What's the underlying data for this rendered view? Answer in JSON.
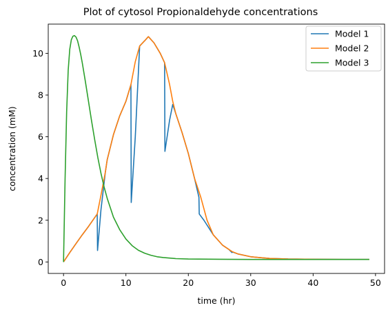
{
  "chart_data": {
    "type": "line",
    "title": "Plot of cytosol Propionaldehyde concentrations",
    "xlabel": "time (hr)",
    "ylabel": "concentration (mM)",
    "xlim": [
      -2.45,
      51.45
    ],
    "ylim": [
      -0.55,
      11.4
    ],
    "xticks": [
      0,
      10,
      20,
      30,
      40,
      50
    ],
    "yticks": [
      0,
      2,
      4,
      6,
      8,
      10
    ],
    "grid": false,
    "legend_position": "top-right",
    "series": [
      {
        "name": "Model 1",
        "color": "#1f77b4",
        "x": [
          0,
          1,
          2,
          3,
          4,
          5.4,
          5.45,
          6,
          6.7,
          7,
          8,
          9,
          10,
          10.8,
          10.85,
          11.5,
          12.2,
          13,
          13.6,
          14.5,
          15.5,
          16.2,
          16.25,
          17,
          17.5,
          18,
          19,
          20,
          21,
          21.7,
          21.75,
          22.5,
          24,
          25.5,
          26.5,
          27,
          27.05,
          28,
          30,
          33,
          36,
          40,
          45,
          49
        ],
        "y": [
          0,
          0.45,
          0.88,
          1.3,
          1.7,
          2.3,
          0.55,
          2.5,
          4.3,
          4.9,
          6.1,
          7.0,
          7.7,
          8.5,
          2.85,
          6.0,
          10.35,
          10.6,
          10.8,
          10.5,
          10.0,
          9.55,
          5.3,
          6.8,
          7.55,
          7.1,
          6.2,
          5.2,
          4.0,
          3.1,
          2.3,
          2.0,
          1.3,
          0.8,
          0.6,
          0.45,
          0.48,
          0.38,
          0.25,
          0.17,
          0.14,
          0.13,
          0.12,
          0.12
        ]
      },
      {
        "name": "Model 2",
        "color": "#ff7f0e",
        "x": [
          0,
          1,
          2,
          3,
          4,
          5.4,
          6,
          6.7,
          7,
          8,
          9,
          10,
          10.8,
          11.5,
          12.2,
          13,
          13.6,
          14.5,
          15.5,
          16.2,
          17,
          17.5,
          18,
          19,
          20,
          21,
          22,
          23,
          24,
          25.5,
          27,
          28,
          30,
          33,
          36,
          40,
          45,
          49
        ],
        "y": [
          0,
          0.45,
          0.88,
          1.3,
          1.7,
          2.3,
          3.2,
          4.3,
          4.9,
          6.1,
          7.0,
          7.7,
          8.5,
          9.6,
          10.35,
          10.6,
          10.8,
          10.5,
          10.0,
          9.55,
          8.5,
          7.7,
          7.1,
          6.2,
          5.2,
          4.0,
          3.1,
          2.0,
          1.3,
          0.8,
          0.5,
          0.38,
          0.25,
          0.17,
          0.14,
          0.13,
          0.12,
          0.12
        ]
      },
      {
        "name": "Model 3",
        "color": "#2ca02c",
        "x": [
          0,
          0.25,
          0.5,
          0.75,
          1,
          1.25,
          1.5,
          1.75,
          2,
          2.25,
          2.5,
          2.75,
          3,
          3.5,
          4,
          4.5,
          5,
          5.5,
          6,
          6.5,
          7,
          8,
          9,
          10,
          11,
          12,
          13,
          14,
          15,
          16,
          18,
          20,
          25,
          30,
          40,
          49
        ],
        "y": [
          0,
          4.0,
          7.2,
          9.2,
          10.2,
          10.65,
          10.82,
          10.85,
          10.78,
          10.6,
          10.3,
          9.95,
          9.55,
          8.65,
          7.7,
          6.75,
          5.85,
          5.0,
          4.25,
          3.6,
          3.05,
          2.15,
          1.55,
          1.1,
          0.78,
          0.56,
          0.42,
          0.32,
          0.25,
          0.21,
          0.16,
          0.14,
          0.13,
          0.12,
          0.12,
          0.12
        ]
      }
    ]
  }
}
